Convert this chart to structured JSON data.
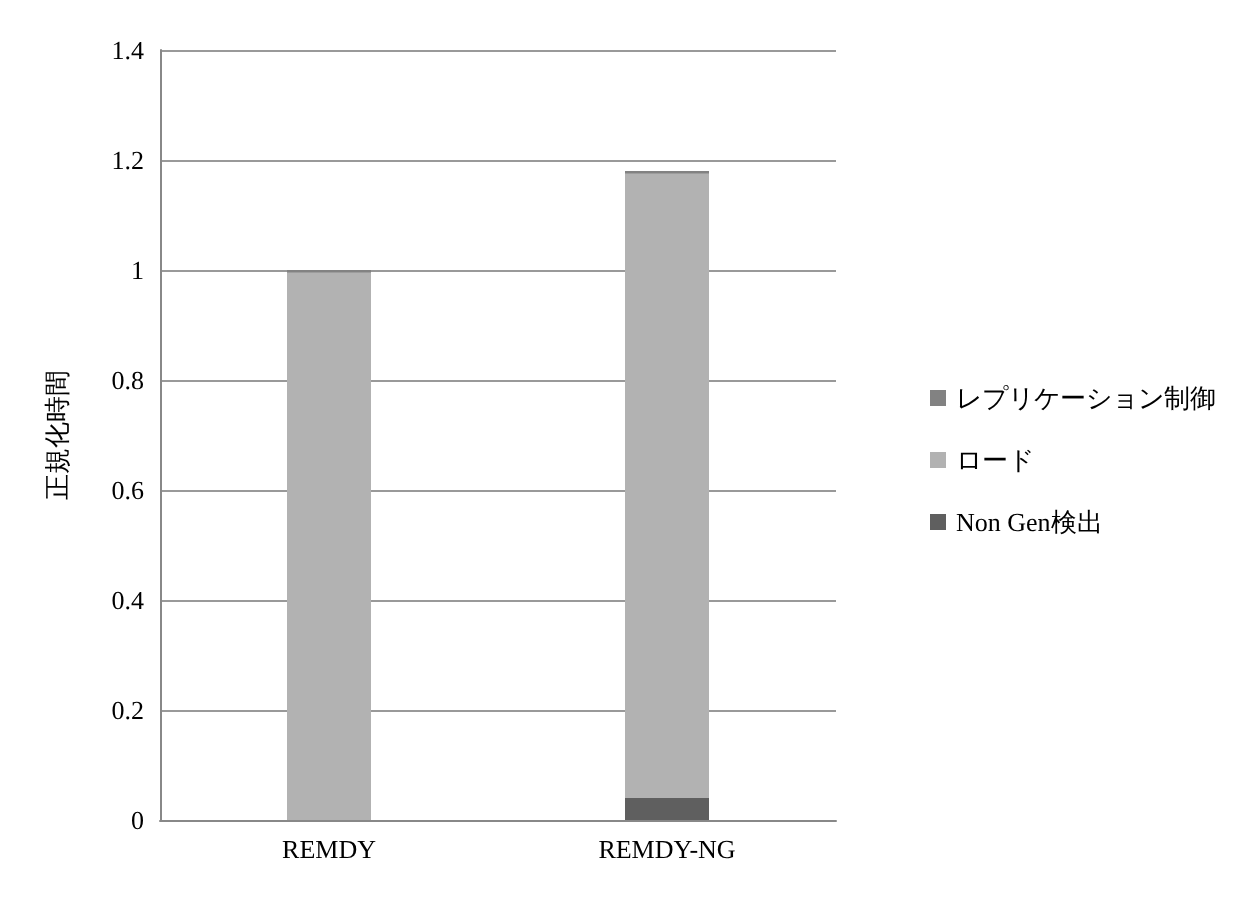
{
  "chart_data": {
    "type": "bar",
    "stacked": true,
    "ylabel": "正規化時間",
    "categories": [
      "REMDY",
      "REMDY-NG"
    ],
    "series": [
      {
        "name": "Non Gen検出",
        "color": "#5f5f5f",
        "values": [
          0,
          0.04
        ]
      },
      {
        "name": "ロード",
        "color": "#b2b2b2",
        "values": [
          0.995,
          1.135
        ]
      },
      {
        "name": "レプリケーション制御",
        "color": "#828282",
        "values": [
          0.005,
          0.005
        ]
      }
    ],
    "ylim": [
      0,
      1.4
    ],
    "yticks": [
      0,
      0.2,
      0.4,
      0.6,
      0.8,
      1,
      1.2,
      1.4
    ],
    "grid": "y",
    "legend": "right"
  }
}
